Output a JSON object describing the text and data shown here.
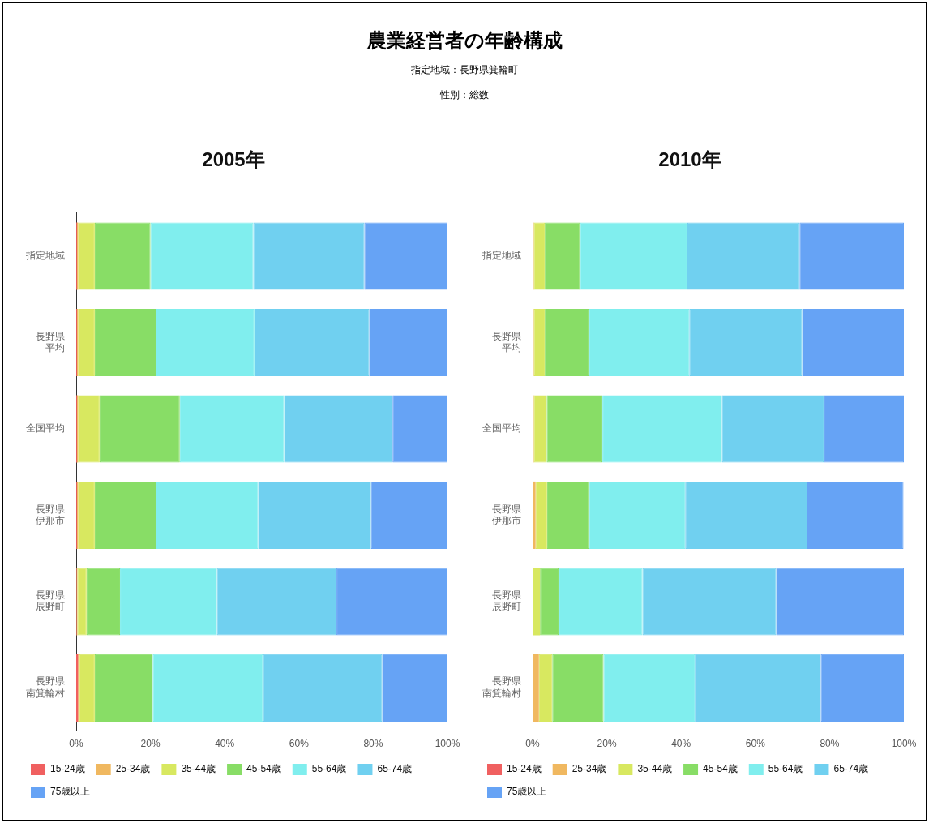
{
  "chart_data": [
    {
      "type": "bar",
      "orientation": "horizontal",
      "stacked": true,
      "title": "2005年",
      "annotations": [
        "農業経営者の年齢構成",
        "指定地域：長野県箕輪町",
        "性別：総数"
      ],
      "categories": [
        "指定地域",
        "長野県平均",
        "全国平均",
        "長野県伊那市",
        "長野県辰野町",
        "長野県南箕輪村"
      ],
      "series": [
        {
          "name": "15-24歳",
          "color": "#f06060",
          "values": [
            0.2,
            0.2,
            0.2,
            0.2,
            0.1,
            0.5
          ]
        },
        {
          "name": "25-34歳",
          "color": "#f0b860",
          "values": [
            0.3,
            0.3,
            0.3,
            0.3,
            0.2,
            0.3
          ]
        },
        {
          "name": "35-44歳",
          "color": "#d8e860",
          "values": [
            4.5,
            4.5,
            5.8,
            4.5,
            2.5,
            4.2
          ]
        },
        {
          "name": "45-54歳",
          "color": "#88dd66",
          "values": [
            15,
            16.4,
            21.6,
            16.4,
            9,
            15.6
          ]
        },
        {
          "name": "55-64歳",
          "color": "#80eeee",
          "values": [
            27.7,
            26.6,
            28.1,
            27.6,
            26.1,
            29.7
          ]
        },
        {
          "name": "65-74歳",
          "color": "#70d0f0",
          "values": [
            29.9,
            30.9,
            29.2,
            30.4,
            32.2,
            32.1
          ]
        },
        {
          "name": "75歳以上",
          "color": "#66a3f5",
          "values": [
            22.4,
            21.1,
            14.8,
            20.6,
            29.9,
            17.6
          ]
        }
      ],
      "xlim": [
        0,
        100
      ],
      "xticks": [
        {
          "value": 0,
          "label": "0%"
        },
        {
          "value": 20,
          "label": "20%"
        },
        {
          "value": 40,
          "label": "40%"
        },
        {
          "value": 60,
          "label": "60%"
        },
        {
          "value": 80,
          "label": "80%"
        },
        {
          "value": 100,
          "label": "100%"
        }
      ],
      "grid": false,
      "legend": "bottom"
    },
    {
      "type": "bar",
      "orientation": "horizontal",
      "stacked": true,
      "title": "2010年",
      "categories": [
        "指定地域",
        "長野県平均",
        "全国平均",
        "長野県伊那市",
        "長野県辰野町",
        "長野県南箕輪村"
      ],
      "series": [
        {
          "name": "15-24歳",
          "color": "#f06060",
          "values": [
            0.1,
            0.1,
            0.1,
            null,
            0.1,
            0.2
          ]
        },
        {
          "name": "25-34歳",
          "color": "#f0b860",
          "values": [
            0.2,
            0.2,
            0.2,
            0.8,
            0.1,
            1.5
          ]
        },
        {
          "name": "35-44歳",
          "color": "#d8e860",
          "values": [
            3,
            3,
            3.5,
            3.1,
            1.8,
            3.6
          ]
        },
        {
          "name": "45-54歳",
          "color": "#88dd66",
          "values": [
            9.5,
            11.8,
            15,
            11.3,
            5,
            13.8
          ]
        },
        {
          "name": "55-64歳",
          "color": "#80eeee",
          "values": [
            28.9,
            27.1,
            32.2,
            25.9,
            22.6,
            24.6
          ]
        },
        {
          "name": "65-74歳",
          "color": "#70d0f0",
          "values": [
            30.2,
            30.4,
            27.4,
            32.7,
            36,
            33.9
          ]
        },
        {
          "name": "75歳以上",
          "color": "#66a3f5",
          "values": [
            28.1,
            27.4,
            21.6,
            26.1,
            34.4,
            22.4
          ]
        }
      ],
      "xlim": [
        0,
        100
      ],
      "xticks": [
        {
          "value": 0,
          "label": "0%"
        },
        {
          "value": 20,
          "label": "20%"
        },
        {
          "value": 40,
          "label": "40%"
        },
        {
          "value": 60,
          "label": "60%"
        },
        {
          "value": 80,
          "label": "80%"
        },
        {
          "value": 100,
          "label": "100%"
        }
      ],
      "grid": false,
      "legend": "bottom"
    }
  ]
}
